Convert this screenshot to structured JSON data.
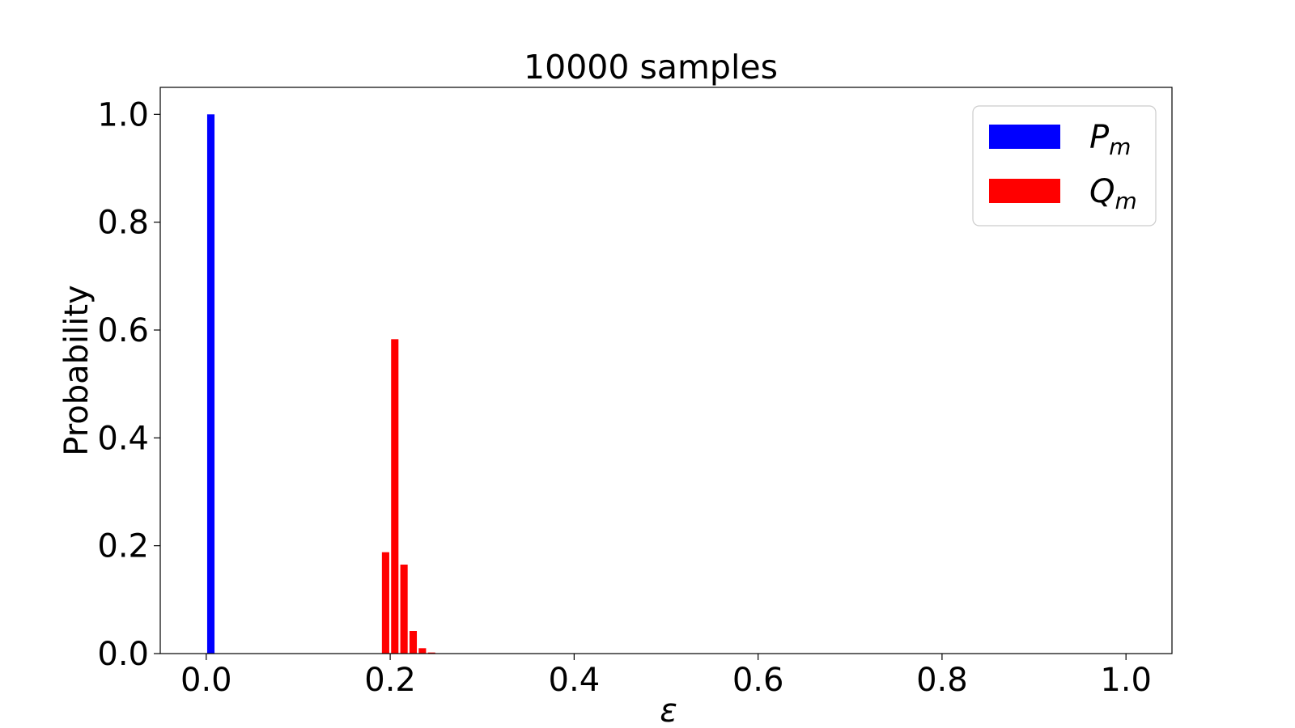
{
  "chart_data": {
    "type": "bar",
    "title": "10000 samples",
    "xlabel": "ε",
    "ylabel": "Probability",
    "xlim": [
      -0.05,
      1.05
    ],
    "ylim": [
      0,
      1.05
    ],
    "xticks": [
      "0.0",
      "0.2",
      "0.4",
      "0.6",
      "0.8",
      "1.0"
    ],
    "yticks": [
      "0.0",
      "0.2",
      "0.4",
      "0.6",
      "0.8",
      "1.0"
    ],
    "grid": false,
    "legend_position": "top-right",
    "bar_width": 0.008,
    "series": [
      {
        "name": "P",
        "subscript": "m",
        "color": "#0000ff",
        "x": [
          0.005
        ],
        "y": [
          1.0
        ]
      },
      {
        "name": "Q",
        "subscript": "m",
        "color": "#ff0000",
        "x": [
          0.195,
          0.205,
          0.215,
          0.225,
          0.235,
          0.245
        ],
        "y": [
          0.188,
          0.583,
          0.165,
          0.042,
          0.01,
          0.002
        ]
      }
    ]
  }
}
